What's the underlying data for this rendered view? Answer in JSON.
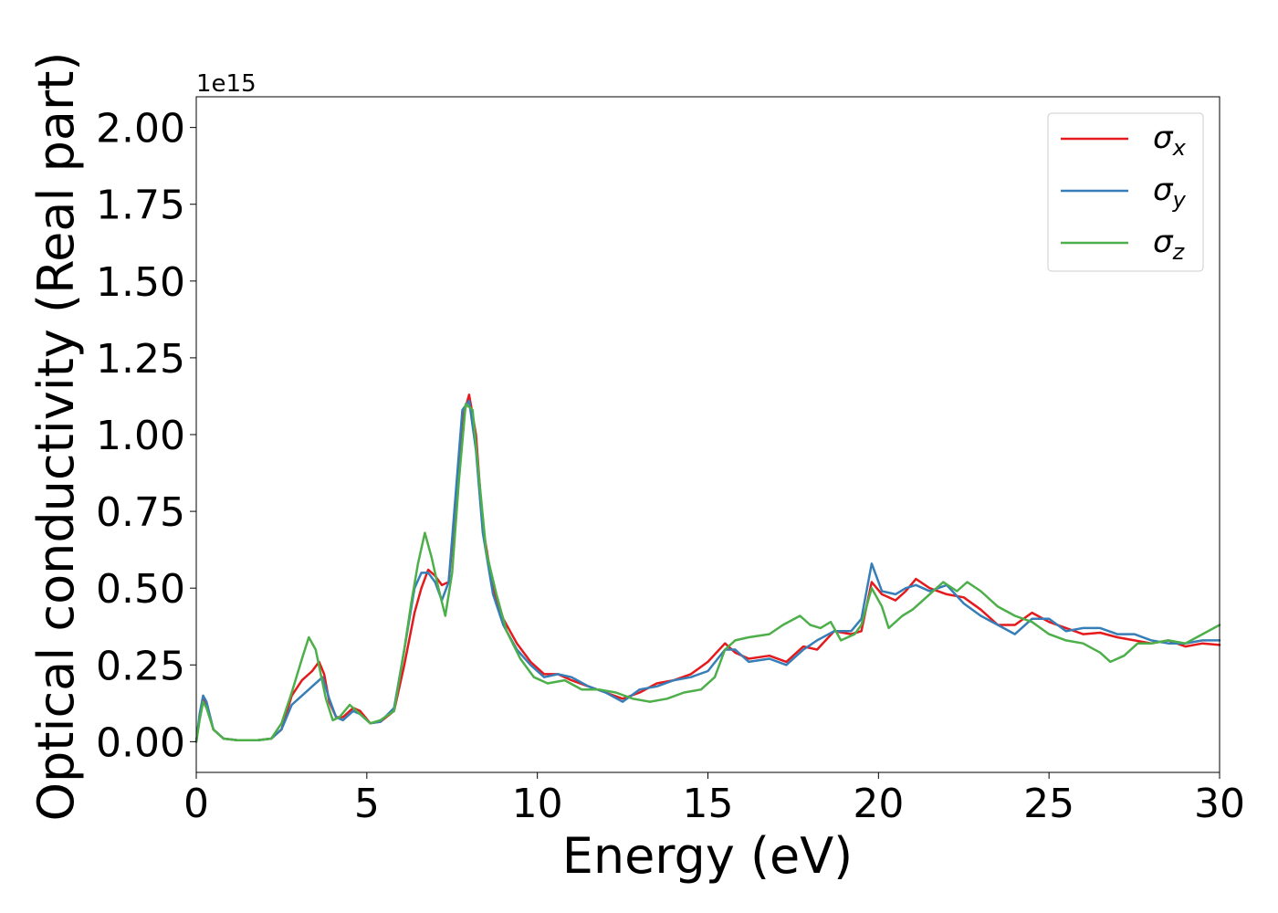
{
  "chart_data": {
    "type": "line",
    "title": "",
    "xlabel": "Energy (eV)",
    "ylabel": "Optical conductivity (Real part)",
    "y_offset_label": "1e15",
    "xlim": [
      0,
      30
    ],
    "ylim": [
      -0.1,
      2.1
    ],
    "x_ticks": [
      0,
      5,
      10,
      15,
      20,
      25,
      30
    ],
    "x_tick_labels": [
      "0",
      "5",
      "10",
      "15",
      "20",
      "25",
      "30"
    ],
    "y_ticks": [
      0.0,
      0.25,
      0.5,
      0.75,
      1.0,
      1.25,
      1.5,
      1.75,
      2.0
    ],
    "y_tick_labels": [
      "0.00",
      "0.25",
      "0.50",
      "0.75",
      "1.00",
      "1.25",
      "1.50",
      "1.75",
      "2.00"
    ],
    "grid": false,
    "legend_position": "top-right",
    "series": [
      {
        "name": "σx",
        "label_base": "σ",
        "label_sub": "x",
        "color": "#e41a1c",
        "points": [
          [
            0,
            0.0
          ],
          [
            0.1,
            0.08
          ],
          [
            0.2,
            0.14
          ],
          [
            0.3,
            0.12
          ],
          [
            0.5,
            0.04
          ],
          [
            0.8,
            0.01
          ],
          [
            1.2,
            0.005
          ],
          [
            1.8,
            0.005
          ],
          [
            2.2,
            0.01
          ],
          [
            2.5,
            0.04
          ],
          [
            2.8,
            0.15
          ],
          [
            3.1,
            0.2
          ],
          [
            3.4,
            0.23
          ],
          [
            3.6,
            0.26
          ],
          [
            3.75,
            0.22
          ],
          [
            3.9,
            0.13
          ],
          [
            4.1,
            0.08
          ],
          [
            4.3,
            0.08
          ],
          [
            4.6,
            0.11
          ],
          [
            4.8,
            0.1
          ],
          [
            5.1,
            0.06
          ],
          [
            5.4,
            0.065
          ],
          [
            5.8,
            0.1
          ],
          [
            6.1,
            0.25
          ],
          [
            6.4,
            0.42
          ],
          [
            6.6,
            0.5
          ],
          [
            6.8,
            0.56
          ],
          [
            7.0,
            0.54
          ],
          [
            7.2,
            0.51
          ],
          [
            7.4,
            0.52
          ],
          [
            7.6,
            0.75
          ],
          [
            7.8,
            1.05
          ],
          [
            8.0,
            1.13
          ],
          [
            8.2,
            1.0
          ],
          [
            8.4,
            0.7
          ],
          [
            8.7,
            0.5
          ],
          [
            9.0,
            0.4
          ],
          [
            9.4,
            0.32
          ],
          [
            9.8,
            0.26
          ],
          [
            10.2,
            0.22
          ],
          [
            10.6,
            0.22
          ],
          [
            11.0,
            0.2
          ],
          [
            11.5,
            0.18
          ],
          [
            12.0,
            0.16
          ],
          [
            12.5,
            0.14
          ],
          [
            13.0,
            0.16
          ],
          [
            13.5,
            0.19
          ],
          [
            14.0,
            0.2
          ],
          [
            14.5,
            0.22
          ],
          [
            15.0,
            0.26
          ],
          [
            15.5,
            0.32
          ],
          [
            15.8,
            0.29
          ],
          [
            16.2,
            0.27
          ],
          [
            16.8,
            0.28
          ],
          [
            17.3,
            0.26
          ],
          [
            17.8,
            0.31
          ],
          [
            18.2,
            0.3
          ],
          [
            18.7,
            0.36
          ],
          [
            19.2,
            0.35
          ],
          [
            19.5,
            0.36
          ],
          [
            19.8,
            0.52
          ],
          [
            20.1,
            0.48
          ],
          [
            20.5,
            0.46
          ],
          [
            20.8,
            0.49
          ],
          [
            21.1,
            0.53
          ],
          [
            21.5,
            0.5
          ],
          [
            22.0,
            0.48
          ],
          [
            22.5,
            0.47
          ],
          [
            23.0,
            0.43
          ],
          [
            23.5,
            0.38
          ],
          [
            24.0,
            0.38
          ],
          [
            24.5,
            0.42
          ],
          [
            25.0,
            0.39
          ],
          [
            25.5,
            0.37
          ],
          [
            26.0,
            0.35
          ],
          [
            26.5,
            0.355
          ],
          [
            27.0,
            0.34
          ],
          [
            27.5,
            0.33
          ],
          [
            28.0,
            0.32
          ],
          [
            28.5,
            0.33
          ],
          [
            29.0,
            0.31
          ],
          [
            29.5,
            0.32
          ],
          [
            30.0,
            0.315
          ]
        ]
      },
      {
        "name": "σy",
        "label_base": "σ",
        "label_sub": "y",
        "color": "#377eb8",
        "points": [
          [
            0,
            0.0
          ],
          [
            0.1,
            0.09
          ],
          [
            0.2,
            0.15
          ],
          [
            0.3,
            0.13
          ],
          [
            0.5,
            0.04
          ],
          [
            0.8,
            0.01
          ],
          [
            1.2,
            0.005
          ],
          [
            1.8,
            0.005
          ],
          [
            2.2,
            0.01
          ],
          [
            2.5,
            0.04
          ],
          [
            2.8,
            0.12
          ],
          [
            3.1,
            0.15
          ],
          [
            3.4,
            0.18
          ],
          [
            3.7,
            0.21
          ],
          [
            3.9,
            0.14
          ],
          [
            4.1,
            0.08
          ],
          [
            4.3,
            0.07
          ],
          [
            4.6,
            0.1
          ],
          [
            4.8,
            0.09
          ],
          [
            5.1,
            0.06
          ],
          [
            5.4,
            0.065
          ],
          [
            5.8,
            0.11
          ],
          [
            6.1,
            0.3
          ],
          [
            6.4,
            0.5
          ],
          [
            6.6,
            0.55
          ],
          [
            6.8,
            0.55
          ],
          [
            7.0,
            0.52
          ],
          [
            7.2,
            0.46
          ],
          [
            7.4,
            0.52
          ],
          [
            7.6,
            0.8
          ],
          [
            7.8,
            1.08
          ],
          [
            8.0,
            1.11
          ],
          [
            8.2,
            0.95
          ],
          [
            8.4,
            0.68
          ],
          [
            8.7,
            0.48
          ],
          [
            9.0,
            0.38
          ],
          [
            9.4,
            0.3
          ],
          [
            9.8,
            0.25
          ],
          [
            10.2,
            0.21
          ],
          [
            10.6,
            0.22
          ],
          [
            11.0,
            0.21
          ],
          [
            11.5,
            0.18
          ],
          [
            12.0,
            0.16
          ],
          [
            12.5,
            0.13
          ],
          [
            13.0,
            0.17
          ],
          [
            13.5,
            0.18
          ],
          [
            14.0,
            0.2
          ],
          [
            14.5,
            0.21
          ],
          [
            15.0,
            0.23
          ],
          [
            15.5,
            0.3
          ],
          [
            15.8,
            0.3
          ],
          [
            16.2,
            0.26
          ],
          [
            16.8,
            0.27
          ],
          [
            17.3,
            0.25
          ],
          [
            17.8,
            0.3
          ],
          [
            18.2,
            0.33
          ],
          [
            18.7,
            0.36
          ],
          [
            19.2,
            0.36
          ],
          [
            19.5,
            0.4
          ],
          [
            19.8,
            0.58
          ],
          [
            20.1,
            0.49
          ],
          [
            20.5,
            0.48
          ],
          [
            20.8,
            0.5
          ],
          [
            21.1,
            0.51
          ],
          [
            21.5,
            0.49
          ],
          [
            22.0,
            0.51
          ],
          [
            22.5,
            0.45
          ],
          [
            23.0,
            0.41
          ],
          [
            23.5,
            0.38
          ],
          [
            24.0,
            0.35
          ],
          [
            24.5,
            0.4
          ],
          [
            25.0,
            0.4
          ],
          [
            25.5,
            0.36
          ],
          [
            26.0,
            0.37
          ],
          [
            26.5,
            0.37
          ],
          [
            27.0,
            0.35
          ],
          [
            27.5,
            0.35
          ],
          [
            28.0,
            0.33
          ],
          [
            28.5,
            0.32
          ],
          [
            29.0,
            0.32
          ],
          [
            29.5,
            0.33
          ],
          [
            30.0,
            0.33
          ]
        ]
      },
      {
        "name": "σz",
        "label_base": "σ",
        "label_sub": "z",
        "color": "#4daf4a",
        "points": [
          [
            0,
            0.0
          ],
          [
            0.1,
            0.07
          ],
          [
            0.2,
            0.13
          ],
          [
            0.3,
            0.11
          ],
          [
            0.5,
            0.04
          ],
          [
            0.8,
            0.01
          ],
          [
            1.2,
            0.005
          ],
          [
            1.8,
            0.005
          ],
          [
            2.2,
            0.01
          ],
          [
            2.5,
            0.06
          ],
          [
            2.8,
            0.16
          ],
          [
            3.1,
            0.27
          ],
          [
            3.3,
            0.34
          ],
          [
            3.5,
            0.3
          ],
          [
            3.8,
            0.14
          ],
          [
            4.0,
            0.07
          ],
          [
            4.2,
            0.08
          ],
          [
            4.5,
            0.12
          ],
          [
            4.8,
            0.09
          ],
          [
            5.1,
            0.06
          ],
          [
            5.4,
            0.07
          ],
          [
            5.8,
            0.1
          ],
          [
            6.1,
            0.3
          ],
          [
            6.3,
            0.45
          ],
          [
            6.5,
            0.58
          ],
          [
            6.7,
            0.68
          ],
          [
            6.9,
            0.6
          ],
          [
            7.1,
            0.5
          ],
          [
            7.3,
            0.41
          ],
          [
            7.5,
            0.55
          ],
          [
            7.7,
            0.85
          ],
          [
            7.9,
            1.1
          ],
          [
            8.1,
            1.08
          ],
          [
            8.3,
            0.85
          ],
          [
            8.5,
            0.62
          ],
          [
            8.8,
            0.48
          ],
          [
            9.1,
            0.36
          ],
          [
            9.5,
            0.27
          ],
          [
            9.9,
            0.21
          ],
          [
            10.3,
            0.19
          ],
          [
            10.8,
            0.2
          ],
          [
            11.3,
            0.17
          ],
          [
            11.8,
            0.17
          ],
          [
            12.3,
            0.16
          ],
          [
            12.8,
            0.14
          ],
          [
            13.3,
            0.13
          ],
          [
            13.8,
            0.14
          ],
          [
            14.3,
            0.16
          ],
          [
            14.8,
            0.17
          ],
          [
            15.2,
            0.21
          ],
          [
            15.5,
            0.3
          ],
          [
            15.8,
            0.33
          ],
          [
            16.2,
            0.34
          ],
          [
            16.8,
            0.35
          ],
          [
            17.2,
            0.38
          ],
          [
            17.7,
            0.41
          ],
          [
            18.0,
            0.38
          ],
          [
            18.3,
            0.37
          ],
          [
            18.6,
            0.39
          ],
          [
            18.9,
            0.33
          ],
          [
            19.3,
            0.35
          ],
          [
            19.5,
            0.38
          ],
          [
            19.8,
            0.5
          ],
          [
            20.1,
            0.44
          ],
          [
            20.3,
            0.37
          ],
          [
            20.7,
            0.41
          ],
          [
            21.0,
            0.43
          ],
          [
            21.5,
            0.48
          ],
          [
            21.9,
            0.52
          ],
          [
            22.3,
            0.49
          ],
          [
            22.6,
            0.52
          ],
          [
            23.0,
            0.49
          ],
          [
            23.5,
            0.44
          ],
          [
            24.0,
            0.41
          ],
          [
            24.5,
            0.39
          ],
          [
            25.0,
            0.35
          ],
          [
            25.5,
            0.33
          ],
          [
            26.0,
            0.32
          ],
          [
            26.5,
            0.29
          ],
          [
            26.8,
            0.26
          ],
          [
            27.2,
            0.28
          ],
          [
            27.6,
            0.32
          ],
          [
            28.0,
            0.32
          ],
          [
            28.5,
            0.33
          ],
          [
            29.0,
            0.32
          ],
          [
            29.5,
            0.35
          ],
          [
            30.0,
            0.38
          ]
        ]
      }
    ]
  }
}
